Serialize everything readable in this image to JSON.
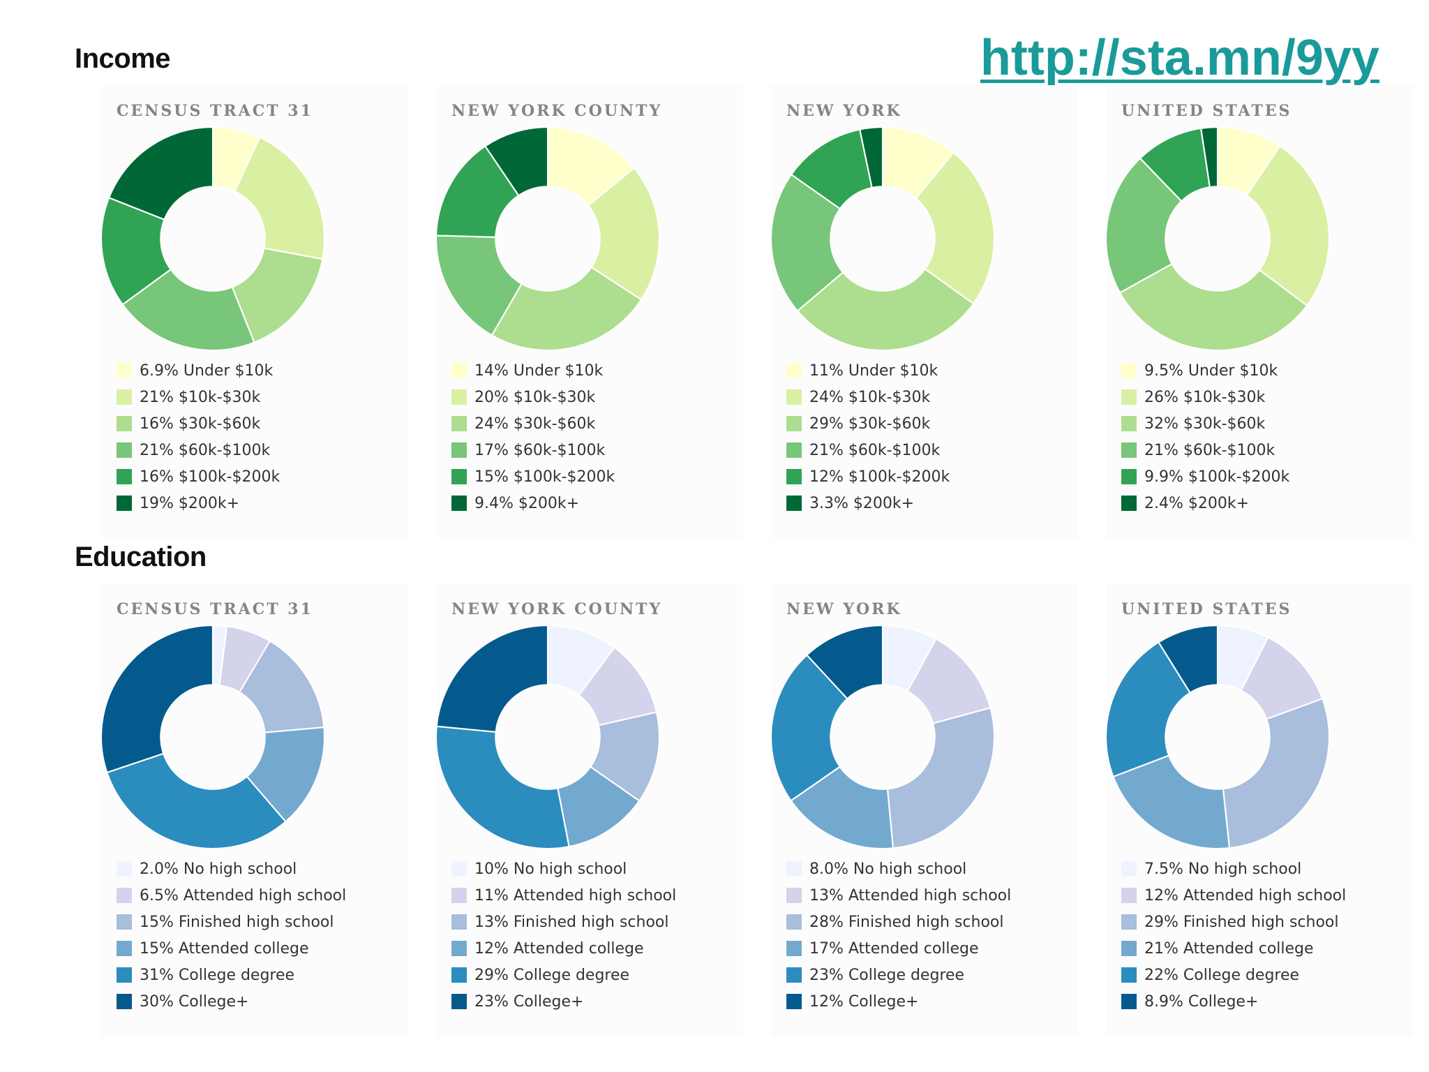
{
  "link": "http://sta.mn/9yy",
  "sections": [
    {
      "title": "Income",
      "categories": [
        "Under $10k",
        "$10k-$30k",
        "$30k-$60k",
        "$60k-$100k",
        "$100k-$200k",
        "$200k+"
      ],
      "colors": [
        "#ffffcc",
        "#d9f0a3",
        "#addd8e",
        "#78c679",
        "#31a354",
        "#006837"
      ]
    },
    {
      "title": "Education",
      "categories": [
        "No high school",
        "Attended high school",
        "Finished high school",
        "Attended college",
        "College degree",
        "College+"
      ],
      "colors": [
        "#eff3ff",
        "#d3d3eb",
        "#a9bddc",
        "#74a9cf",
        "#2b8cbe",
        "#045a8d"
      ]
    }
  ],
  "chart_data": [
    {
      "type": "pie",
      "section": "Income",
      "title": "CENSUS TRACT 31",
      "categories": [
        "Under $10k",
        "$10k-$30k",
        "$30k-$60k",
        "$60k-$100k",
        "$100k-$200k",
        "$200k+"
      ],
      "values": [
        6.9,
        21,
        16,
        21,
        16,
        19
      ],
      "labels": [
        "6.9%",
        "21%",
        "16%",
        "21%",
        "16%",
        "19%"
      ]
    },
    {
      "type": "pie",
      "section": "Income",
      "title": "NEW YORK COUNTY",
      "categories": [
        "Under $10k",
        "$10k-$30k",
        "$30k-$60k",
        "$60k-$100k",
        "$100k-$200k",
        "$200k+"
      ],
      "values": [
        14,
        20,
        24,
        17,
        15,
        9.4
      ],
      "labels": [
        "14%",
        "20%",
        "24%",
        "17%",
        "15%",
        "9.4%"
      ]
    },
    {
      "type": "pie",
      "section": "Income",
      "title": "NEW YORK",
      "categories": [
        "Under $10k",
        "$10k-$30k",
        "$30k-$60k",
        "$60k-$100k",
        "$100k-$200k",
        "$200k+"
      ],
      "values": [
        11,
        24,
        29,
        21,
        12,
        3.3
      ],
      "labels": [
        "11%",
        "24%",
        "29%",
        "21%",
        "12%",
        "3.3%"
      ]
    },
    {
      "type": "pie",
      "section": "Income",
      "title": "UNITED STATES",
      "categories": [
        "Under $10k",
        "$10k-$30k",
        "$30k-$60k",
        "$60k-$100k",
        "$100k-$200k",
        "$200k+"
      ],
      "values": [
        9.5,
        26,
        32,
        21,
        9.9,
        2.4
      ],
      "labels": [
        "9.5%",
        "26%",
        "32%",
        "21%",
        "9.9%",
        "2.4%"
      ]
    },
    {
      "type": "pie",
      "section": "Education",
      "title": "CENSUS TRACT 31",
      "categories": [
        "No high school",
        "Attended high school",
        "Finished high school",
        "Attended college",
        "College degree",
        "College+"
      ],
      "values": [
        2.0,
        6.5,
        15,
        15,
        31,
        30
      ],
      "labels": [
        "2.0%",
        "6.5%",
        "15%",
        "15%",
        "31%",
        "30%"
      ]
    },
    {
      "type": "pie",
      "section": "Education",
      "title": "NEW YORK COUNTY",
      "categories": [
        "No high school",
        "Attended high school",
        "Finished high school",
        "Attended college",
        "College degree",
        "College+"
      ],
      "values": [
        10,
        11,
        13,
        12,
        29,
        23
      ],
      "labels": [
        "10%",
        "11%",
        "13%",
        "12%",
        "29%",
        "23%"
      ]
    },
    {
      "type": "pie",
      "section": "Education",
      "title": "NEW YORK",
      "categories": [
        "No high school",
        "Attended high school",
        "Finished high school",
        "Attended college",
        "College degree",
        "College+"
      ],
      "values": [
        8.0,
        13,
        28,
        17,
        23,
        12
      ],
      "labels": [
        "8.0%",
        "13%",
        "28%",
        "17%",
        "23%",
        "12%"
      ]
    },
    {
      "type": "pie",
      "section": "Education",
      "title": "UNITED STATES",
      "categories": [
        "No high school",
        "Attended high school",
        "Finished high school",
        "Attended college",
        "College degree",
        "College+"
      ],
      "values": [
        7.5,
        12,
        29,
        21,
        22,
        8.9
      ],
      "labels": [
        "7.5%",
        "12%",
        "29%",
        "21%",
        "22%",
        "8.9%"
      ]
    }
  ]
}
